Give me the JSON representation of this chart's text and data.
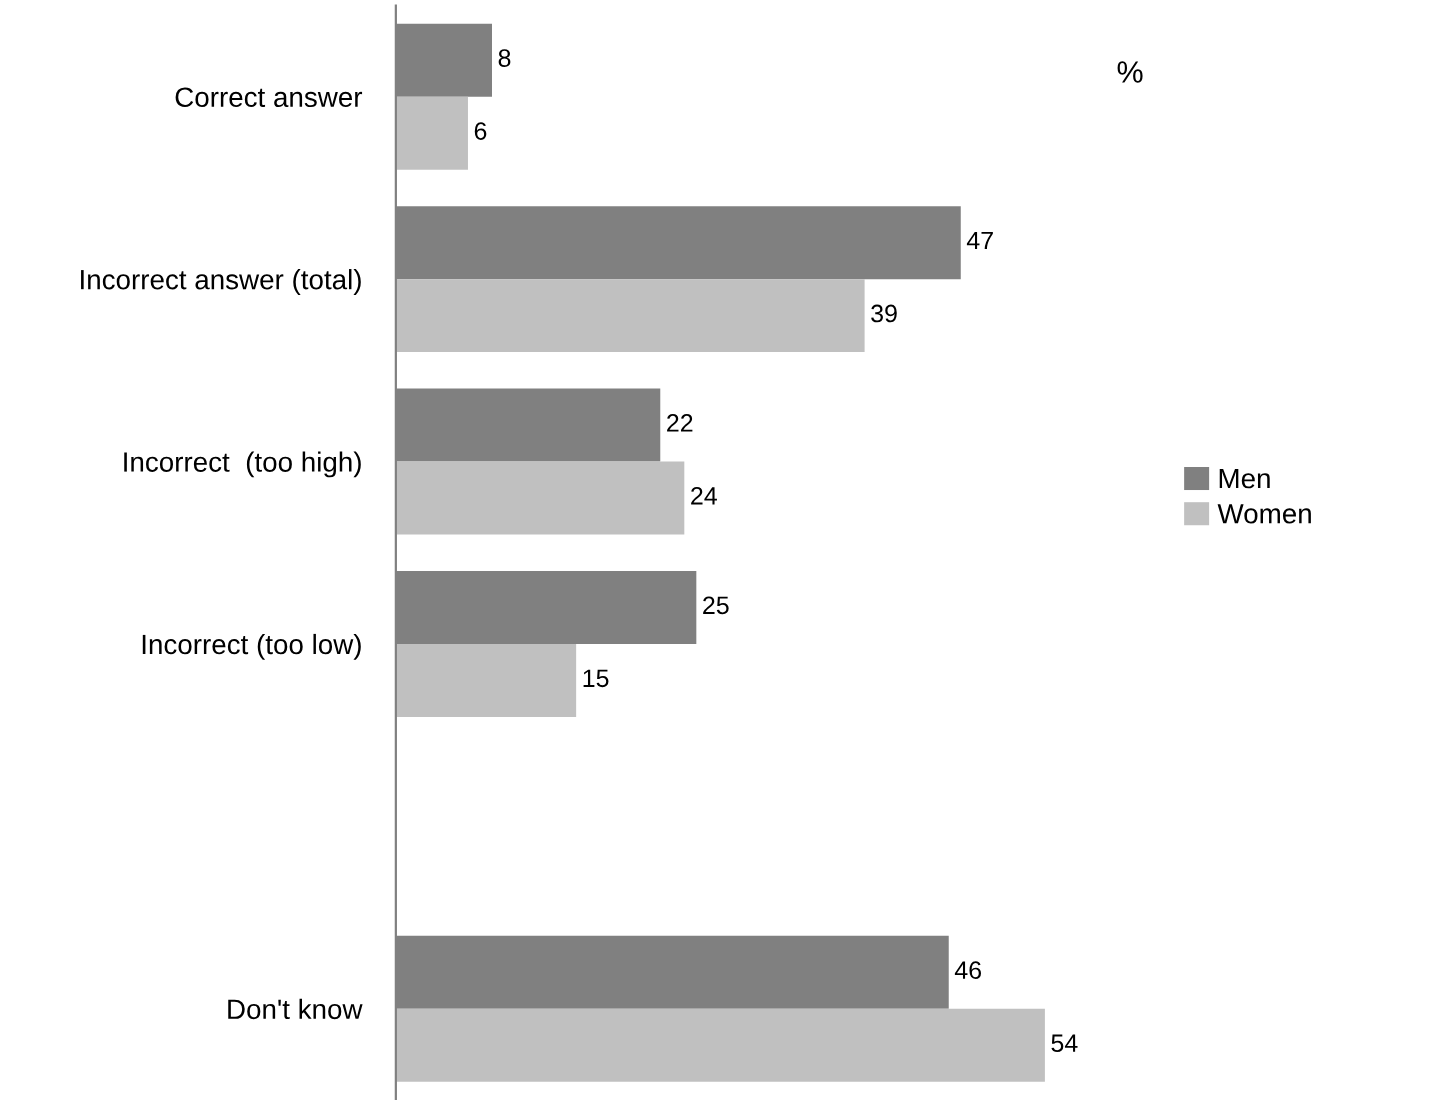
{
  "chart_data": {
    "type": "bar",
    "orientation": "horizontal",
    "categories": [
      "Correct answer",
      "Incorrect answer (total)",
      "Incorrect  (too high)",
      "Incorrect (too low)",
      null,
      "Don't know"
    ],
    "series": [
      {
        "name": "Men",
        "color": "#808080",
        "values": [
          8,
          47,
          22,
          25,
          null,
          46
        ]
      },
      {
        "name": "Women",
        "color": "#c0c0c0",
        "values": [
          6,
          39,
          24,
          15,
          null,
          54
        ]
      }
    ],
    "data_labels": true,
    "legend": "right",
    "grid": false,
    "annotations": [
      "%"
    ]
  }
}
